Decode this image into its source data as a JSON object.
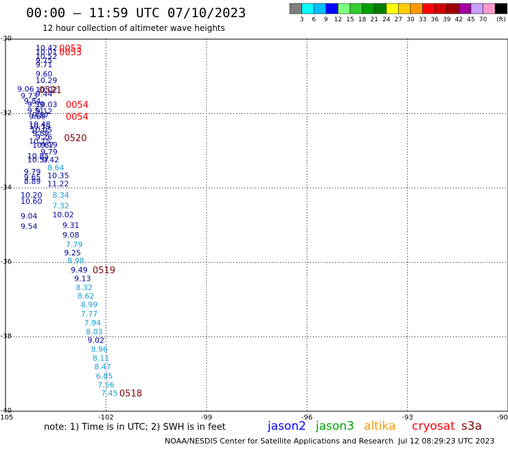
{
  "header": {
    "title": "00:00 – 11:59 UTC 07/10/2023",
    "subtitle": "12 hour collection of altimeter wave heights"
  },
  "legend": {
    "unit": "(ft)",
    "swatches": [
      {
        "color": "#7f7f7f",
        "label": ""
      },
      {
        "color": "#00ffff",
        "label": "3"
      },
      {
        "color": "#00bfff",
        "label": "6"
      },
      {
        "color": "#0000ff",
        "label": "9"
      },
      {
        "color": "#7fff7f",
        "label": "12"
      },
      {
        "color": "#32cd32",
        "label": "15"
      },
      {
        "color": "#00a000",
        "label": "18"
      },
      {
        "color": "#008000",
        "label": "21"
      },
      {
        "color": "#ffff00",
        "label": "24"
      },
      {
        "color": "#ffcc00",
        "label": "27"
      },
      {
        "color": "#ff9900",
        "label": "30"
      },
      {
        "color": "#ff0000",
        "label": "33"
      },
      {
        "color": "#d00000",
        "label": "36"
      },
      {
        "color": "#a00000",
        "label": "39"
      },
      {
        "color": "#a000a0",
        "label": "42"
      },
      {
        "color": "#c8a0ff",
        "label": "45"
      },
      {
        "color": "#ff99cc",
        "label": "70"
      },
      {
        "color": "#000000",
        "label": ""
      }
    ]
  },
  "colors": {
    "dark_blue": "#00009c",
    "light_blue": "#1a9fd6",
    "red": "#ff0000",
    "dark_red": "#7a0000"
  },
  "chart_data": {
    "type": "scatter",
    "xlim": [
      -105,
      -90
    ],
    "ylim": [
      -40,
      -30
    ],
    "x_ticks": [
      {
        "value": -105,
        "label": "-105"
      },
      {
        "value": -102,
        "label": "-102"
      },
      {
        "value": -99,
        "label": "-99"
      },
      {
        "value": -96,
        "label": "-96"
      },
      {
        "value": -93,
        "label": "-93"
      },
      {
        "value": -90,
        "label": "-90"
      }
    ],
    "y_ticks": [
      {
        "value": -30,
        "label": "-30"
      },
      {
        "value": -32,
        "label": "-32"
      },
      {
        "value": -34,
        "label": "-34"
      },
      {
        "value": -36,
        "label": "-36"
      },
      {
        "value": -38,
        "label": "-38"
      },
      {
        "value": -40,
        "label": "-40"
      }
    ],
    "grid": true,
    "points": [
      {
        "lon": -104.1,
        "lat": -30.23,
        "label": "10.42",
        "color": "dark_blue"
      },
      {
        "lon": -104.1,
        "lat": -30.34,
        "label": "10.01",
        "color": "dark_blue"
      },
      {
        "lon": -104.1,
        "lat": -30.46,
        "label": "10.52",
        "color": "dark_blue"
      },
      {
        "lon": -104.1,
        "lat": -30.57,
        "label": "9.75",
        "color": "dark_blue"
      },
      {
        "lon": -104.1,
        "lat": -30.68,
        "label": "9.71",
        "color": "dark_blue"
      },
      {
        "lon": -104.1,
        "lat": -30.93,
        "label": "9.60",
        "color": "dark_blue"
      },
      {
        "lon": -104.1,
        "lat": -31.11,
        "label": "10.29",
        "color": "dark_blue"
      },
      {
        "lon": -104.65,
        "lat": -31.34,
        "label": "9.06",
        "color": "dark_blue"
      },
      {
        "lon": -104.1,
        "lat": -31.36,
        "label": "10.02",
        "color": "dark_blue"
      },
      {
        "lon": -104.1,
        "lat": -31.47,
        "label": "9.44",
        "color": "dark_blue"
      },
      {
        "lon": -104.55,
        "lat": -31.52,
        "label": "9.73",
        "color": "dark_blue"
      },
      {
        "lon": -104.45,
        "lat": -31.66,
        "label": "9.84",
        "color": "dark_blue"
      },
      {
        "lon": -104.1,
        "lat": -31.75,
        "label": "10.03",
        "color": "dark_blue"
      },
      {
        "lon": -104.35,
        "lat": -31.75,
        "label": "9.59",
        "color": "dark_blue"
      },
      {
        "lon": -104.35,
        "lat": -31.92,
        "label": "9.51",
        "color": "dark_blue"
      },
      {
        "lon": -104.1,
        "lat": -31.94,
        "label": "9.12",
        "color": "dark_blue"
      },
      {
        "lon": -104.2,
        "lat": -32.04,
        "label": "9.87",
        "color": "dark_blue"
      },
      {
        "lon": -104.3,
        "lat": -32.08,
        "label": "9.69",
        "color": "dark_blue"
      },
      {
        "lon": -104.3,
        "lat": -32.29,
        "label": "10.48",
        "color": "dark_blue"
      },
      {
        "lon": -104.3,
        "lat": -32.34,
        "label": "10.19",
        "color": "dark_blue"
      },
      {
        "lon": -104.25,
        "lat": -32.44,
        "label": "10.05",
        "color": "dark_blue"
      },
      {
        "lon": -104.2,
        "lat": -32.53,
        "label": "9.89",
        "color": "dark_blue"
      },
      {
        "lon": -104.1,
        "lat": -32.63,
        "label": "9.26",
        "color": "dark_blue"
      },
      {
        "lon": -104.3,
        "lat": -32.74,
        "label": "10.15",
        "color": "dark_blue"
      },
      {
        "lon": -104.2,
        "lat": -32.84,
        "label": "10.67",
        "color": "dark_blue"
      },
      {
        "lon": -103.95,
        "lat": -32.84,
        "label": "9.19",
        "color": "dark_blue"
      },
      {
        "lon": -103.95,
        "lat": -33.03,
        "label": "9.79",
        "color": "dark_blue"
      },
      {
        "lon": -104.35,
        "lat": -33.14,
        "label": "10.85",
        "color": "dark_blue"
      },
      {
        "lon": -104.35,
        "lat": -33.24,
        "label": "10.57",
        "color": "dark_blue"
      },
      {
        "lon": -103.9,
        "lat": -33.24,
        "label": "9.42",
        "color": "dark_blue"
      },
      {
        "lon": -103.75,
        "lat": -33.45,
        "label": "8.64",
        "color": "light_blue"
      },
      {
        "lon": -104.45,
        "lat": -33.56,
        "label": "9.79",
        "color": "dark_blue"
      },
      {
        "lon": -103.75,
        "lat": -33.66,
        "label": "10.35",
        "color": "dark_blue"
      },
      {
        "lon": -104.45,
        "lat": -33.71,
        "label": "9.65",
        "color": "dark_blue"
      },
      {
        "lon": -104.45,
        "lat": -33.82,
        "label": "8.89",
        "color": "dark_blue"
      },
      {
        "lon": -103.75,
        "lat": -33.88,
        "label": "11.22",
        "color": "dark_blue"
      },
      {
        "lon": -103.6,
        "lat": -34.19,
        "label": "8.34",
        "color": "light_blue"
      },
      {
        "lon": -104.55,
        "lat": -34.19,
        "label": "10.20",
        "color": "dark_blue"
      },
      {
        "lon": -104.55,
        "lat": -34.35,
        "label": "10.60",
        "color": "dark_blue"
      },
      {
        "lon": -103.6,
        "lat": -34.47,
        "label": "7.32",
        "color": "light_blue"
      },
      {
        "lon": -103.6,
        "lat": -34.71,
        "label": "10.02",
        "color": "dark_blue"
      },
      {
        "lon": -104.55,
        "lat": -34.75,
        "label": "9.04",
        "color": "dark_blue"
      },
      {
        "lon": -104.55,
        "lat": -35.03,
        "label": "9.54",
        "color": "dark_blue"
      },
      {
        "lon": -103.3,
        "lat": -35.0,
        "label": "9.31",
        "color": "dark_blue"
      },
      {
        "lon": -103.3,
        "lat": -35.26,
        "label": "9.08",
        "color": "dark_blue"
      },
      {
        "lon": -103.2,
        "lat": -35.52,
        "label": "7.79",
        "color": "light_blue"
      },
      {
        "lon": -103.25,
        "lat": -35.74,
        "label": "9.25",
        "color": "dark_blue"
      },
      {
        "lon": -103.15,
        "lat": -35.95,
        "label": "8.98",
        "color": "light_blue"
      },
      {
        "lon": -103.05,
        "lat": -36.2,
        "label": "9.49",
        "color": "dark_blue"
      },
      {
        "lon": -102.95,
        "lat": -36.43,
        "label": "9.13",
        "color": "dark_blue"
      },
      {
        "lon": -102.9,
        "lat": -36.67,
        "label": "8.32",
        "color": "light_blue"
      },
      {
        "lon": -102.85,
        "lat": -36.9,
        "label": "8.62",
        "color": "light_blue"
      },
      {
        "lon": -102.75,
        "lat": -37.13,
        "label": "8.99",
        "color": "light_blue"
      },
      {
        "lon": -102.75,
        "lat": -37.38,
        "label": "7.77",
        "color": "light_blue"
      },
      {
        "lon": -102.65,
        "lat": -37.62,
        "label": "7.94",
        "color": "light_blue"
      },
      {
        "lon": -102.6,
        "lat": -37.86,
        "label": "8.03",
        "color": "light_blue"
      },
      {
        "lon": -102.55,
        "lat": -38.09,
        "label": "9.02",
        "color": "dark_blue"
      },
      {
        "lon": -102.45,
        "lat": -38.33,
        "label": "8.96",
        "color": "light_blue"
      },
      {
        "lon": -102.4,
        "lat": -38.57,
        "label": "8.11",
        "color": "light_blue"
      },
      {
        "lon": -102.35,
        "lat": -38.8,
        "label": "8.47",
        "color": "light_blue"
      },
      {
        "lon": -102.3,
        "lat": -39.05,
        "label": "6.85",
        "color": "light_blue"
      },
      {
        "lon": -102.25,
        "lat": -39.29,
        "label": "7.56",
        "color": "light_blue"
      },
      {
        "lon": -102.15,
        "lat": -39.51,
        "label": "7.45",
        "color": "light_blue"
      }
    ],
    "pass_labels": [
      {
        "lon": -103.4,
        "lat": -30.24,
        "label": "0053",
        "color": "red"
      },
      {
        "lon": -103.4,
        "lat": -30.34,
        "label": "0053",
        "color": "red"
      },
      {
        "lon": -104.0,
        "lat": -31.36,
        "label": "0521",
        "color": "dark_red"
      },
      {
        "lon": -103.2,
        "lat": -31.75,
        "label": "0054",
        "color": "red"
      },
      {
        "lon": -103.2,
        "lat": -32.08,
        "label": "0054",
        "color": "red"
      },
      {
        "lon": -103.25,
        "lat": -32.65,
        "label": "0520",
        "color": "dark_red"
      },
      {
        "lon": -102.4,
        "lat": -36.2,
        "label": "0519",
        "color": "dark_red"
      },
      {
        "lon": -101.6,
        "lat": -39.51,
        "label": "0518",
        "color": "dark_red"
      }
    ]
  },
  "footer": {
    "note": "note: 1) Time is in UTC; 2) SWH is in feet",
    "satellites": [
      {
        "name": "jason2",
        "color": "#0000ff"
      },
      {
        "name": "jason3",
        "color": "#00a000"
      },
      {
        "name": "altika",
        "color": "#ff9900"
      },
      {
        "name": "cryosat",
        "color": "#ff0000"
      },
      {
        "name": "s3a",
        "color": "#7a0000"
      }
    ],
    "credit": "NOAA/NESDIS Center for Satellite Applications and Research",
    "generated": "Jul 12 08:29:23 UTC 2023"
  }
}
